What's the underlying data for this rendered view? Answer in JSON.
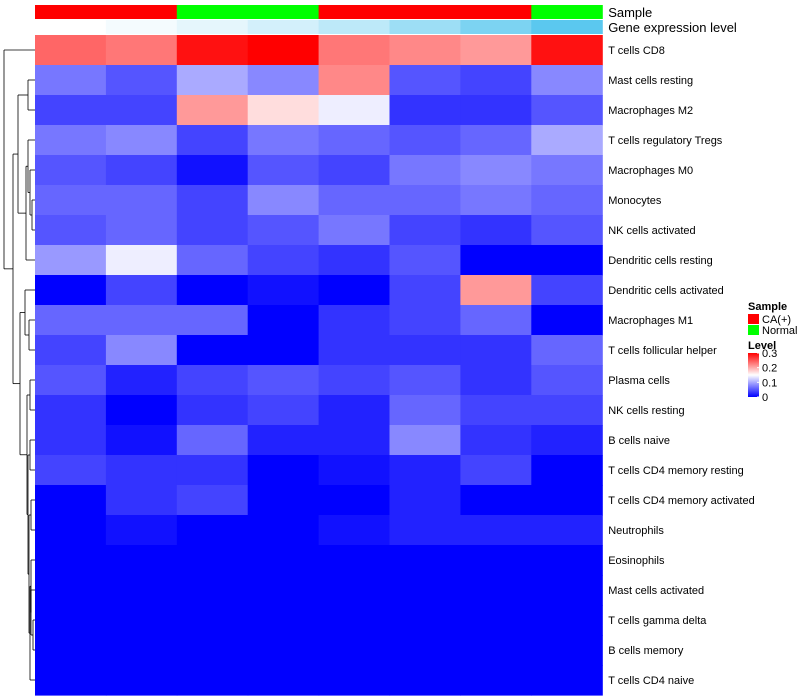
{
  "chart_data": {
    "type": "heatmap",
    "annotations": [
      {
        "name": "Sample",
        "values": [
          "CA(+)",
          "CA(+)",
          "Normal",
          "Normal",
          "CA(+)",
          "CA(+)",
          "CA(+)",
          "Normal"
        ]
      },
      {
        "name": "Gene expression level",
        "values": [
          0.0,
          0.05,
          0.12,
          0.2,
          0.3,
          0.45,
          0.6,
          0.75
        ]
      }
    ],
    "rows": [
      "T cells CD8",
      "Mast cells resting",
      "Macrophages M2",
      "T cells regulatory  Tregs",
      "Macrophages M0",
      "Monocytes",
      "NK cells activated",
      "Dendritic cells resting",
      "Dendritic cells activated",
      "Macrophages M1",
      "T cells follicular helper",
      "Plasma cells",
      "NK cells resting",
      "B cells naive",
      "T cells CD4 memory resting",
      "T cells CD4 memory activated",
      "Neutrophils",
      "Eosinophils",
      "Mast cells activated",
      "T cells gamma delta",
      "B cells memory",
      "T cells CD4 naive"
    ],
    "values": [
      [
        0.24,
        0.23,
        0.29,
        0.3,
        0.23,
        0.22,
        0.21,
        0.29
      ],
      [
        0.07,
        0.05,
        0.1,
        0.08,
        0.22,
        0.05,
        0.04,
        0.08
      ],
      [
        0.04,
        0.04,
        0.21,
        0.17,
        0.14,
        0.03,
        0.03,
        0.05
      ],
      [
        0.07,
        0.08,
        0.04,
        0.07,
        0.06,
        0.05,
        0.06,
        0.1
      ],
      [
        0.05,
        0.04,
        0.01,
        0.05,
        0.04,
        0.07,
        0.08,
        0.07
      ],
      [
        0.06,
        0.06,
        0.04,
        0.08,
        0.06,
        0.06,
        0.07,
        0.06
      ],
      [
        0.05,
        0.06,
        0.04,
        0.05,
        0.07,
        0.04,
        0.03,
        0.05
      ],
      [
        0.09,
        0.14,
        0.06,
        0.04,
        0.03,
        0.05,
        0.0,
        0.0
      ],
      [
        0.0,
        0.04,
        0.0,
        0.01,
        0.0,
        0.04,
        0.21,
        0.04
      ],
      [
        0.06,
        0.06,
        0.06,
        0.0,
        0.03,
        0.04,
        0.06,
        0.0
      ],
      [
        0.04,
        0.08,
        0.0,
        0.0,
        0.03,
        0.03,
        0.03,
        0.06
      ],
      [
        0.05,
        0.02,
        0.04,
        0.05,
        0.04,
        0.05,
        0.03,
        0.05
      ],
      [
        0.03,
        0.0,
        0.03,
        0.04,
        0.02,
        0.06,
        0.04,
        0.04
      ],
      [
        0.03,
        0.01,
        0.06,
        0.02,
        0.02,
        0.08,
        0.03,
        0.02
      ],
      [
        0.04,
        0.03,
        0.03,
        0.0,
        0.01,
        0.02,
        0.04,
        0.0
      ],
      [
        0.0,
        0.03,
        0.04,
        0.0,
        0.0,
        0.02,
        0.0,
        0.0
      ],
      [
        0.0,
        0.01,
        0.0,
        0.0,
        0.01,
        0.02,
        0.02,
        0.02
      ],
      [
        0.0,
        0.0,
        0.0,
        0.0,
        0.0,
        0.0,
        0.0,
        0.0
      ],
      [
        0.0,
        0.0,
        0.0,
        0.0,
        0.0,
        0.0,
        0.0,
        0.0
      ],
      [
        0.0,
        0.0,
        0.0,
        0.0,
        0.0,
        0.0,
        0.0,
        0.0
      ],
      [
        0.0,
        0.0,
        0.0,
        0.0,
        0.0,
        0.0,
        0.0,
        0.0
      ],
      [
        0.0,
        0.0,
        0.0,
        0.0,
        0.0,
        0.0,
        0.0,
        0.0
      ]
    ],
    "color_scale": {
      "min": 0,
      "mid": 0.15,
      "max": 0.3,
      "low_color": "#0000FF",
      "mid_color": "#FFFFFF",
      "high_color": "#FF0000"
    },
    "annotation_colors": {
      "Sample": {
        "CA(+)": "#FF0000",
        "Normal": "#00FF00"
      },
      "Gene expression level": {
        "low_color": "#FFFFFF",
        "high_color": "#5BC8EF"
      }
    },
    "legend": {
      "sample_title": "Sample",
      "sample_items": [
        {
          "label": "CA(+)",
          "color": "#FF0000"
        },
        {
          "label": "Normal",
          "color": "#00FF00"
        }
      ],
      "level_title": "Level",
      "level_ticks": [
        "0.3",
        "0.2",
        "0.1",
        "0"
      ]
    },
    "dendrogram": "rows",
    "grid": false
  }
}
